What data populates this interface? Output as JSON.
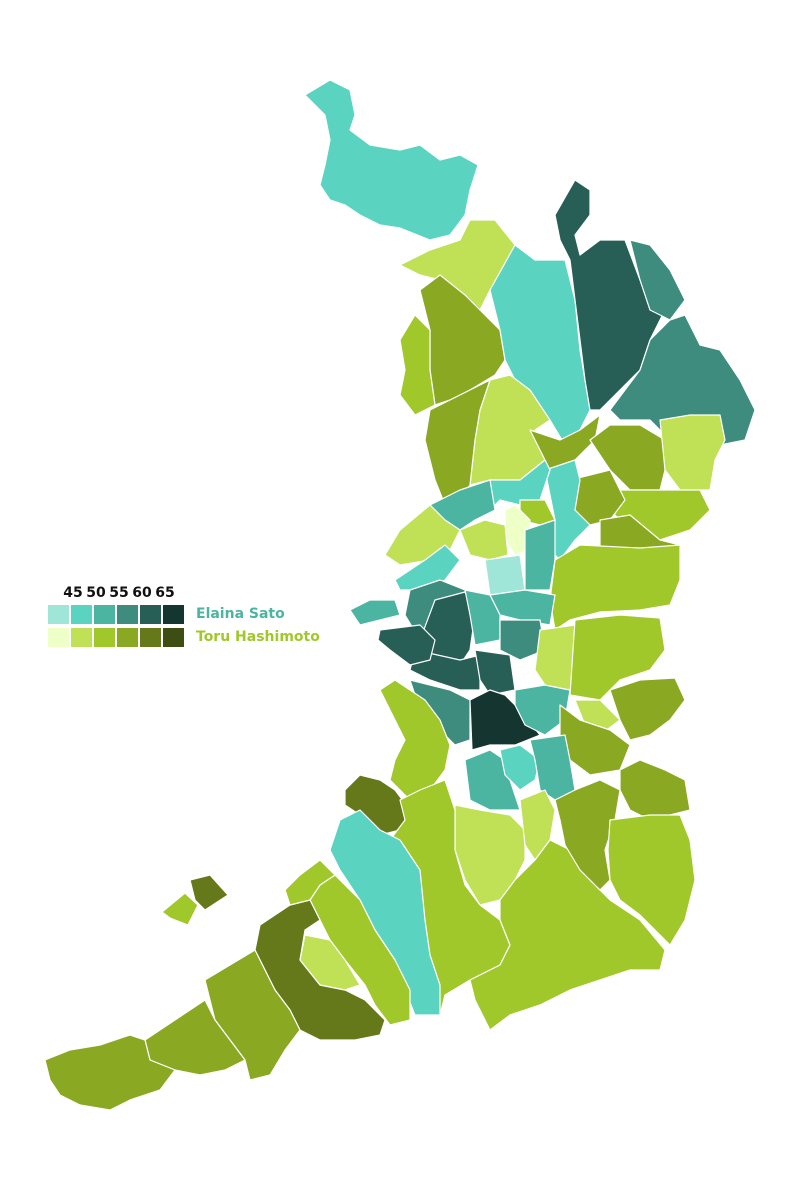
{
  "legend": {
    "ticks": [
      "45",
      "50",
      "55",
      "60",
      "65"
    ],
    "candidates": [
      {
        "name": "Elaina Sato",
        "label_color": "#4bb5a2",
        "shades": [
          "#a0e6d8",
          "#5ad4c0",
          "#4bb5a2",
          "#3d8c7e",
          "#275f57",
          "#153530"
        ]
      },
      {
        "name": "Toru Hashimoto",
        "label_color": "#a0c82a",
        "shades": [
          "#eeffc8",
          "#c0e055",
          "#a0c82a",
          "#8aa822",
          "#65781a",
          "#3e4e12"
        ]
      }
    ]
  },
  "regions": [
    {
      "candidate": 0,
      "shade": 1
    },
    {
      "candidate": 1,
      "shade": 1
    },
    {
      "candidate": 1,
      "shade": 3
    },
    {
      "candidate": 1,
      "shade": 2
    },
    {
      "candidate": 0,
      "shade": 1
    },
    {
      "candidate": 0,
      "shade": 4
    },
    {
      "candidate": 0,
      "shade": 3
    },
    {
      "candidate": 0,
      "shade": 3
    },
    {
      "candidate": 1,
      "shade": 1
    },
    {
      "candidate": 1,
      "shade": 3
    },
    {
      "candidate": 1,
      "shade": 3
    },
    {
      "candidate": 1,
      "shade": 3
    },
    {
      "candidate": 1,
      "shade": 1
    },
    {
      "candidate": 1,
      "shade": 2
    },
    {
      "candidate": 1,
      "shade": 3
    },
    {
      "candidate": 1,
      "shade": 3
    },
    {
      "candidate": 0,
      "shade": 1
    },
    {
      "candidate": 0,
      "shade": 1
    },
    {
      "candidate": 0,
      "shade": 2
    },
    {
      "candidate": 1,
      "shade": 1
    },
    {
      "candidate": 1,
      "shade": 2
    },
    {
      "candidate": 1,
      "shade": 0
    },
    {
      "candidate": 1,
      "shade": 1
    },
    {
      "candidate": 0,
      "shade": 1
    },
    {
      "candidate": 0,
      "shade": 0
    },
    {
      "candidate": 0,
      "shade": 2
    },
    {
      "candidate": 1,
      "shade": 2
    },
    {
      "candidate": 0,
      "shade": 2
    },
    {
      "candidate": 0,
      "shade": 3
    },
    {
      "candidate": 0,
      "shade": 4
    },
    {
      "candidate": 0,
      "shade": 2
    },
    {
      "candidate": 0,
      "shade": 3
    },
    {
      "candidate": 0,
      "shade": 4
    },
    {
      "candidate": 0,
      "shade": 4
    },
    {
      "candidate": 0,
      "shade": 3
    },
    {
      "candidate": 0,
      "shade": 5
    },
    {
      "candidate": 0,
      "shade": 2
    },
    {
      "candidate": 1,
      "shade": 1
    },
    {
      "candidate": 1,
      "shade": 2
    },
    {
      "candidate": 1,
      "shade": 3
    },
    {
      "candidate": 1,
      "shade": 1
    },
    {
      "candidate": 1,
      "shade": 3
    },
    {
      "candidate": 0,
      "shade": 2
    },
    {
      "candidate": 0,
      "shade": 1
    },
    {
      "candidate": 0,
      "shade": 2
    },
    {
      "candidate": 1,
      "shade": 2
    },
    {
      "candidate": 1,
      "shade": 4
    },
    {
      "candidate": 1,
      "shade": 1
    },
    {
      "candidate": 1,
      "shade": 1
    },
    {
      "candidate": 1,
      "shade": 2
    },
    {
      "candidate": 0,
      "shade": 1
    },
    {
      "candidate": 1,
      "shade": 2
    },
    {
      "candidate": 1,
      "shade": 3
    },
    {
      "candidate": 1,
      "shade": 3
    },
    {
      "candidate": 1,
      "shade": 2
    },
    {
      "candidate": 1,
      "shade": 2
    },
    {
      "candidate": 1,
      "shade": 4
    },
    {
      "candidate": 1,
      "shade": 1
    },
    {
      "candidate": 1,
      "shade": 3
    },
    {
      "candidate": 1,
      "shade": 3
    },
    {
      "candidate": 1,
      "shade": 3
    },
    {
      "candidate": 1,
      "shade": 2
    },
    {
      "candidate": 1,
      "shade": 4
    },
    {
      "candidate": 1,
      "shade": 2
    },
    {
      "candidate": 0,
      "shade": 4
    },
    {
      "candidate": 0,
      "shade": 2
    }
  ]
}
